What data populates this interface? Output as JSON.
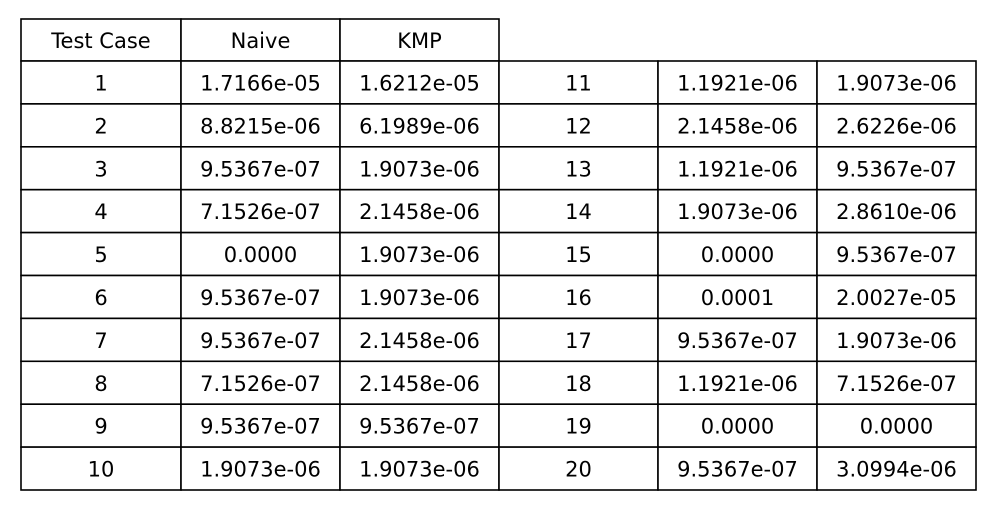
{
  "chart_data": {
    "type": "table",
    "columns": [
      "Test Case",
      "Naive",
      "KMP"
    ],
    "rows": [
      [
        "1",
        "1.7166e-05",
        "1.6212e-05"
      ],
      [
        "2",
        "8.8215e-06",
        "6.1989e-06"
      ],
      [
        "3",
        "9.5367e-07",
        "1.9073e-06"
      ],
      [
        "4",
        "7.1526e-07",
        "2.1458e-06"
      ],
      [
        "5",
        "0.0000",
        "1.9073e-06"
      ],
      [
        "6",
        "9.5367e-07",
        "1.9073e-06"
      ],
      [
        "7",
        "9.5367e-07",
        "2.1458e-06"
      ],
      [
        "8",
        "7.1526e-07",
        "2.1458e-06"
      ],
      [
        "9",
        "9.5367e-07",
        "9.5367e-07"
      ],
      [
        "10",
        "1.9073e-06",
        "1.9073e-06"
      ],
      [
        "11",
        "1.1921e-06",
        "1.9073e-06"
      ],
      [
        "12",
        "2.1458e-06",
        "2.6226e-06"
      ],
      [
        "13",
        "1.1921e-06",
        "9.5367e-07"
      ],
      [
        "14",
        "1.9073e-06",
        "2.8610e-06"
      ],
      [
        "15",
        "0.0000",
        "9.5367e-07"
      ],
      [
        "16",
        "0.0001",
        "2.0027e-05"
      ],
      [
        "17",
        "9.5367e-07",
        "1.9073e-06"
      ],
      [
        "18",
        "1.1921e-06",
        "7.1526e-07"
      ],
      [
        "19",
        "0.0000",
        "0.0000"
      ],
      [
        "20",
        "9.5367e-07",
        "3.0994e-06"
      ]
    ],
    "line_color": "#000000",
    "background_color": "#ffffff"
  }
}
